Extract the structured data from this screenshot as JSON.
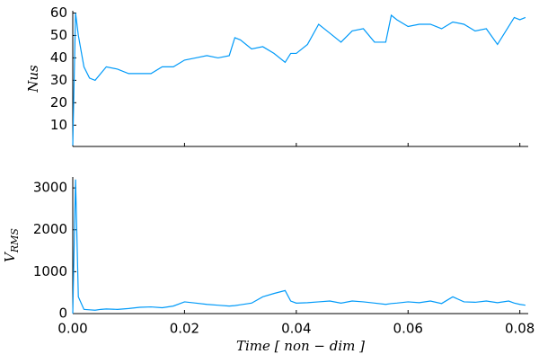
{
  "chart_data": [
    {
      "type": "line",
      "ylabel": "Nus",
      "x": [
        0,
        0.0005,
        0.001,
        0.002,
        0.003,
        0.004,
        0.005,
        0.006,
        0.008,
        0.01,
        0.012,
        0.014,
        0.016,
        0.018,
        0.02,
        0.022,
        0.024,
        0.026,
        0.028,
        0.029,
        0.03,
        0.032,
        0.034,
        0.036,
        0.038,
        0.039,
        0.04,
        0.042,
        0.044,
        0.046,
        0.048,
        0.05,
        0.052,
        0.054,
        0.056,
        0.057,
        0.058,
        0.06,
        0.062,
        0.064,
        0.066,
        0.068,
        0.07,
        0.072,
        0.074,
        0.076,
        0.078,
        0.079,
        0.08,
        0.081
      ],
      "values": [
        1,
        60,
        50,
        36,
        31,
        30,
        33,
        36,
        35,
        33,
        33,
        33,
        36,
        36,
        39,
        40,
        41,
        40,
        41,
        49,
        48,
        44,
        45,
        42,
        38,
        42,
        42,
        46,
        55,
        51,
        47,
        52,
        53,
        47,
        47,
        59,
        57,
        54,
        55,
        55,
        53,
        56,
        55,
        52,
        53,
        46,
        54,
        58,
        57,
        58
      ],
      "color": "#009af9",
      "xlim": [
        0,
        0.0815
      ],
      "xticks": [
        0,
        0.02,
        0.04,
        0.06,
        0.08
      ],
      "ylim": [
        0.5,
        61
      ],
      "yticks": [
        10,
        20,
        30,
        40,
        50,
        60
      ]
    },
    {
      "type": "line",
      "ylabel": "V",
      "ylabel_subscript": "RMS",
      "xlabel": "Time [ non − dim ]",
      "x": [
        0,
        0.0005,
        0.001,
        0.002,
        0.003,
        0.004,
        0.005,
        0.006,
        0.008,
        0.01,
        0.012,
        0.014,
        0.016,
        0.018,
        0.02,
        0.022,
        0.024,
        0.026,
        0.028,
        0.029,
        0.03,
        0.032,
        0.034,
        0.036,
        0.038,
        0.039,
        0.04,
        0.042,
        0.044,
        0.046,
        0.048,
        0.05,
        0.052,
        0.054,
        0.056,
        0.057,
        0.058,
        0.06,
        0.062,
        0.064,
        0.066,
        0.068,
        0.07,
        0.072,
        0.074,
        0.076,
        0.078,
        0.079,
        0.08,
        0.081
      ],
      "values": [
        0,
        3200,
        400,
        100,
        90,
        80,
        100,
        110,
        100,
        120,
        150,
        160,
        140,
        180,
        280,
        250,
        220,
        200,
        180,
        190,
        210,
        250,
        400,
        480,
        550,
        300,
        250,
        260,
        280,
        300,
        250,
        300,
        280,
        250,
        220,
        240,
        250,
        280,
        260,
        300,
        240,
        400,
        280,
        270,
        300,
        260,
        300,
        250,
        220,
        200
      ],
      "color": "#009af9",
      "xlim": [
        0,
        0.0815
      ],
      "xticks": [
        {
          "value": 0,
          "label": "0.00"
        },
        {
          "value": 0.02,
          "label": "0.02"
        },
        {
          "value": 0.04,
          "label": "0.04"
        },
        {
          "value": 0.06,
          "label": "0.06"
        },
        {
          "value": 0.08,
          "label": "0.08"
        }
      ],
      "ylim": [
        0,
        3260
      ],
      "yticks": [
        0,
        1000,
        2000,
        3000
      ]
    }
  ]
}
